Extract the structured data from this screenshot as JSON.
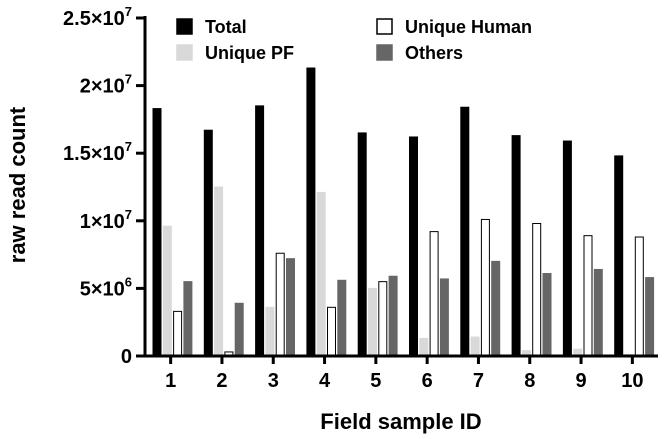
{
  "chart_data": {
    "type": "bar",
    "xlabel": "Field sample ID",
    "ylabel": "raw read count",
    "categories": [
      "1",
      "2",
      "3",
      "4",
      "5",
      "6",
      "7",
      "8",
      "9",
      "10"
    ],
    "ylim": [
      0,
      25000000
    ],
    "yticks": [
      {
        "value": 0,
        "mantissa": "0",
        "exp": ""
      },
      {
        "value": 5000000,
        "mantissa": "5×10",
        "exp": "6"
      },
      {
        "value": 10000000,
        "mantissa": "1×10",
        "exp": "7"
      },
      {
        "value": 15000000,
        "mantissa": "1.5×10",
        "exp": "7"
      },
      {
        "value": 20000000,
        "mantissa": "2×10",
        "exp": "7"
      },
      {
        "value": 25000000,
        "mantissa": "2.5×10",
        "exp": "7"
      }
    ],
    "legend_placement": "top",
    "series": [
      {
        "name": "Total",
        "fill": "#000000",
        "stroke": "#000000",
        "values": [
          18300000,
          16700000,
          18500000,
          21300000,
          16500000,
          16200000,
          18400000,
          16300000,
          15900000,
          14800000
        ]
      },
      {
        "name": "Unique PF",
        "fill": "#d9d9d9",
        "stroke": "#d9d9d9",
        "values": [
          9600000,
          12500000,
          3600000,
          12100000,
          5000000,
          1300000,
          1400000,
          400000,
          500000,
          100000
        ]
      },
      {
        "name": "Unique Human",
        "fill": "#ffffff",
        "stroke": "#000000",
        "values": [
          3300000,
          300000,
          7600000,
          3600000,
          5500000,
          9200000,
          10100000,
          9800000,
          8900000,
          8800000
        ]
      },
      {
        "name": "Others",
        "fill": "#666666",
        "stroke": "#666666",
        "values": [
          5500000,
          3900000,
          7200000,
          5600000,
          5900000,
          5700000,
          7000000,
          6100000,
          6400000,
          5800000
        ]
      }
    ]
  }
}
